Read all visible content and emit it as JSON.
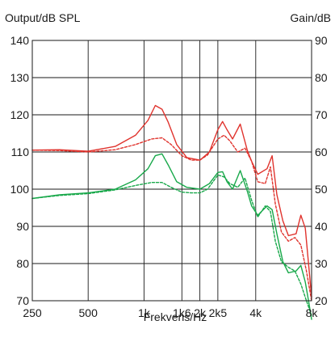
{
  "chart_data": {
    "type": "line",
    "title": "",
    "xlabel": "Frekvens/Hz",
    "ylabel_left": "Output/dB SPL",
    "ylabel_right": "Gain/dB",
    "x_scale": "log",
    "xlim": [
      250,
      8000
    ],
    "ylim_left": [
      70,
      140
    ],
    "ylim_right": [
      20,
      90
    ],
    "x_tick_values": [
      250,
      500,
      1000,
      1600,
      2000,
      2500,
      4000,
      8000
    ],
    "x_tick_labels": [
      "250",
      "500",
      "1k",
      "1k6",
      "2k",
      "2k5",
      "4k",
      "8k"
    ],
    "y_left_ticks": [
      70,
      80,
      90,
      100,
      110,
      120,
      130,
      140
    ],
    "y_right_ticks": [
      20,
      30,
      40,
      50,
      60,
      70,
      80,
      90
    ],
    "grid": true,
    "colors": {
      "output": "#e0332d",
      "gain": "#18a84a",
      "axis": "#1a1a1a"
    },
    "series": [
      {
        "axis": "left",
        "color": "#e0332d",
        "style": "solid",
        "x": [
          250,
          350,
          500,
          700,
          900,
          1050,
          1150,
          1250,
          1350,
          1500,
          1700,
          2000,
          2250,
          2500,
          2650,
          2800,
          3000,
          3300,
          3600,
          3800,
          4100,
          4600,
          4900,
          5200,
          5600,
          6000,
          6600,
          7000,
          7400,
          7700,
          8000
        ],
        "y": [
          110.5,
          110.6,
          110.2,
          111.5,
          114.5,
          118.5,
          122.5,
          121.5,
          118,
          112,
          108.5,
          107.8,
          110,
          116,
          118.2,
          116,
          113.5,
          117.5,
          110.5,
          107.5,
          104,
          105.5,
          109,
          98.5,
          91.5,
          87.5,
          88,
          93,
          89.5,
          80,
          71
        ]
      },
      {
        "axis": "left",
        "color": "#e0332d",
        "style": "dashed",
        "x": [
          250,
          350,
          500,
          700,
          900,
          1100,
          1250,
          1400,
          1600,
          1800,
          2000,
          2200,
          2500,
          2700,
          2900,
          3200,
          3500,
          3800,
          4100,
          4500,
          4800,
          5100,
          5500,
          6000,
          6500,
          7000,
          7500,
          8000
        ],
        "y": [
          110.5,
          110.4,
          110,
          110.6,
          112,
          113.5,
          113.8,
          112,
          109,
          107.8,
          107.8,
          109.2,
          113.5,
          114.5,
          113,
          110,
          111,
          107.5,
          102,
          101.5,
          106,
          96,
          88.5,
          86,
          87,
          85,
          78,
          70
        ]
      },
      {
        "axis": "right",
        "color": "#18a84a",
        "style": "solid",
        "x": [
          250,
          350,
          500,
          700,
          900,
          1050,
          1150,
          1250,
          1350,
          1500,
          1700,
          2000,
          2250,
          2500,
          2650,
          2800,
          3000,
          3300,
          3600,
          3800,
          4100,
          4600,
          4900,
          5200,
          5600,
          6000,
          6600,
          7000,
          7400,
          7700,
          8000
        ],
        "y": [
          47.5,
          48.5,
          49,
          50,
          52.5,
          55.5,
          59,
          59.5,
          56.5,
          52,
          50.5,
          50,
          51.5,
          54.5,
          54.7,
          52,
          50,
          55,
          49.5,
          45.5,
          43,
          45.5,
          44.5,
          38,
          30.5,
          27.5,
          28,
          29.5,
          25,
          20,
          15
        ]
      },
      {
        "axis": "right",
        "color": "#18a84a",
        "style": "dashed",
        "x": [
          250,
          350,
          500,
          700,
          900,
          1100,
          1250,
          1400,
          1600,
          1800,
          2000,
          2200,
          2500,
          2700,
          2900,
          3200,
          3500,
          3800,
          4100,
          4500,
          4800,
          5100,
          5500,
          6000,
          6500,
          7000,
          7500,
          8000
        ],
        "y": [
          47.5,
          48.3,
          48.8,
          49.8,
          51,
          51.8,
          51.8,
          50.5,
          49.2,
          49,
          49,
          50,
          53.8,
          53.3,
          51.5,
          50.5,
          53,
          47,
          42.5,
          45.5,
          44,
          36,
          30.5,
          29,
          28,
          24.5,
          20,
          16
        ]
      }
    ]
  }
}
